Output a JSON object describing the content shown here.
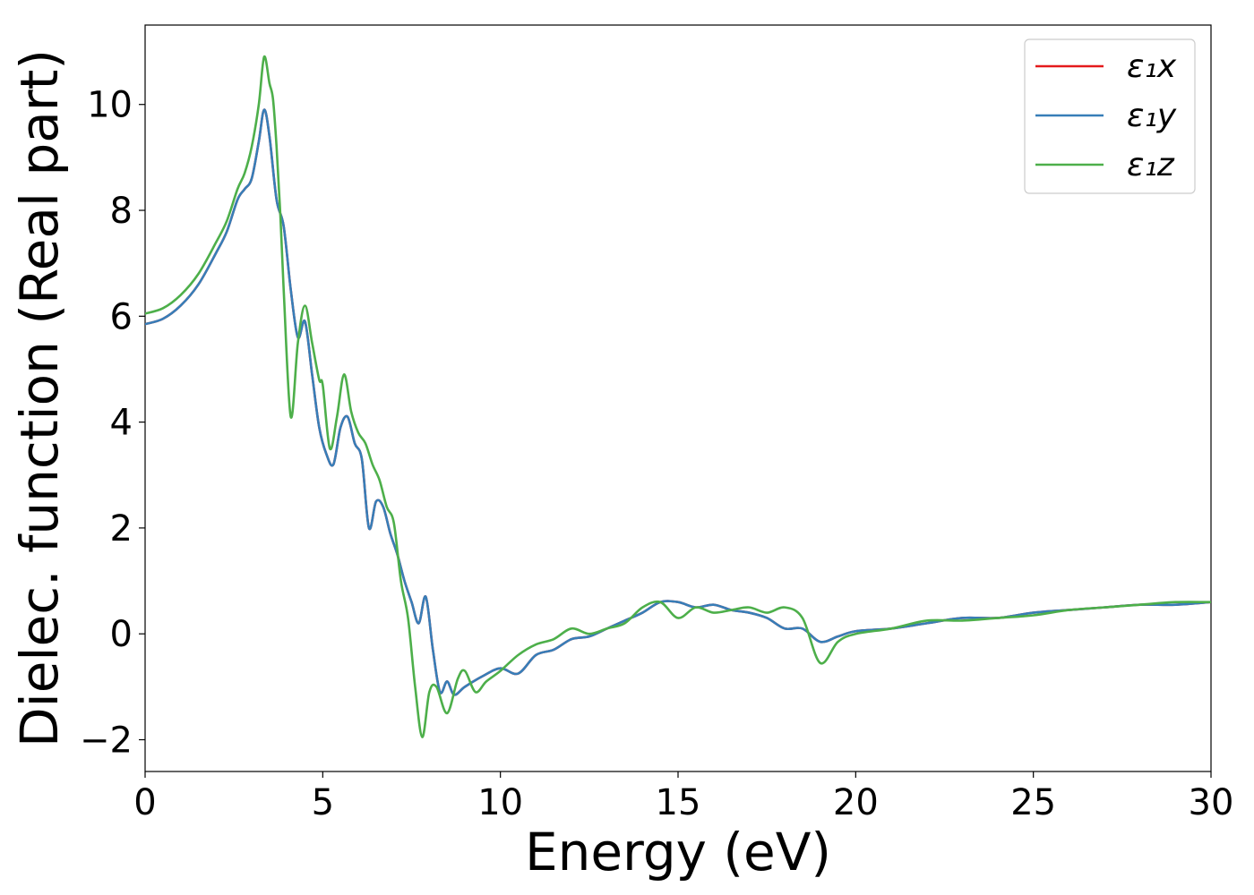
{
  "chart_data": {
    "type": "line",
    "title": "",
    "xlabel": "Energy (eV)",
    "ylabel": "Dielec. function (Real part)",
    "xlim": [
      0,
      30
    ],
    "ylim": [
      -2.6,
      11.5
    ],
    "xticks": [
      0,
      5,
      10,
      15,
      20,
      25,
      30
    ],
    "yticks": [
      -2,
      0,
      2,
      4,
      6,
      8,
      10
    ],
    "xtick_labels": [
      "0",
      "5",
      "10",
      "15",
      "20",
      "25",
      "30"
    ],
    "ytick_labels": [
      "−2",
      "0",
      "2",
      "4",
      "6",
      "8",
      "10"
    ],
    "grid": false,
    "legend_position": "top-right",
    "series": [
      {
        "name": "ε₁x",
        "color": "#e41a1c",
        "x": [
          0,
          0.5,
          1.0,
          1.5,
          2.0,
          2.3,
          2.6,
          2.8,
          3.0,
          3.2,
          3.35,
          3.5,
          3.7,
          3.9,
          4.1,
          4.3,
          4.5,
          4.7,
          4.9,
          5.1,
          5.3,
          5.5,
          5.7,
          5.9,
          6.1,
          6.3,
          6.5,
          6.7,
          6.9,
          7.1,
          7.3,
          7.5,
          7.7,
          7.9,
          8.1,
          8.3,
          8.5,
          8.7,
          9.0,
          9.5,
          10.0,
          10.5,
          11.0,
          11.5,
          12.0,
          12.5,
          13.0,
          13.5,
          14.0,
          14.5,
          15.0,
          15.5,
          16.0,
          16.5,
          17.0,
          17.5,
          18.0,
          18.5,
          19.0,
          19.5,
          20.0,
          21.0,
          22.0,
          23.0,
          24.0,
          25.0,
          26.0,
          27.0,
          28.0,
          29.0,
          30.0
        ],
        "values": [
          5.85,
          5.95,
          6.2,
          6.6,
          7.2,
          7.6,
          8.2,
          8.4,
          8.6,
          9.3,
          9.9,
          9.4,
          8.2,
          7.7,
          6.5,
          5.6,
          5.9,
          4.9,
          3.9,
          3.4,
          3.2,
          3.9,
          4.1,
          3.6,
          3.3,
          2.0,
          2.5,
          2.4,
          1.9,
          1.5,
          1.0,
          0.6,
          0.2,
          0.7,
          -0.3,
          -1.1,
          -0.9,
          -1.15,
          -1.0,
          -0.8,
          -0.65,
          -0.75,
          -0.4,
          -0.3,
          -0.1,
          -0.05,
          0.1,
          0.25,
          0.4,
          0.6,
          0.6,
          0.5,
          0.55,
          0.45,
          0.4,
          0.3,
          0.1,
          0.1,
          -0.15,
          -0.05,
          0.05,
          0.1,
          0.2,
          0.3,
          0.3,
          0.4,
          0.45,
          0.5,
          0.55,
          0.55,
          0.6
        ]
      },
      {
        "name": "ε₁y",
        "color": "#377eb8",
        "x": [
          0,
          0.5,
          1.0,
          1.5,
          2.0,
          2.3,
          2.6,
          2.8,
          3.0,
          3.2,
          3.35,
          3.5,
          3.7,
          3.9,
          4.1,
          4.3,
          4.5,
          4.7,
          4.9,
          5.1,
          5.3,
          5.5,
          5.7,
          5.9,
          6.1,
          6.3,
          6.5,
          6.7,
          6.9,
          7.1,
          7.3,
          7.5,
          7.7,
          7.9,
          8.1,
          8.3,
          8.5,
          8.7,
          9.0,
          9.5,
          10.0,
          10.5,
          11.0,
          11.5,
          12.0,
          12.5,
          13.0,
          13.5,
          14.0,
          14.5,
          15.0,
          15.5,
          16.0,
          16.5,
          17.0,
          17.5,
          18.0,
          18.5,
          19.0,
          19.5,
          20.0,
          21.0,
          22.0,
          23.0,
          24.0,
          25.0,
          26.0,
          27.0,
          28.0,
          29.0,
          30.0
        ],
        "values": [
          5.85,
          5.95,
          6.2,
          6.6,
          7.2,
          7.6,
          8.2,
          8.4,
          8.6,
          9.3,
          9.9,
          9.4,
          8.2,
          7.7,
          6.5,
          5.6,
          5.9,
          4.9,
          3.9,
          3.4,
          3.2,
          3.9,
          4.1,
          3.6,
          3.3,
          2.0,
          2.5,
          2.4,
          1.9,
          1.5,
          1.0,
          0.6,
          0.2,
          0.7,
          -0.3,
          -1.1,
          -0.9,
          -1.15,
          -1.0,
          -0.8,
          -0.65,
          -0.75,
          -0.4,
          -0.3,
          -0.1,
          -0.05,
          0.1,
          0.25,
          0.4,
          0.6,
          0.6,
          0.5,
          0.55,
          0.45,
          0.4,
          0.3,
          0.1,
          0.1,
          -0.15,
          -0.05,
          0.05,
          0.1,
          0.2,
          0.3,
          0.3,
          0.4,
          0.45,
          0.5,
          0.55,
          0.55,
          0.6
        ]
      },
      {
        "name": "ε₁z",
        "color": "#4daf4a",
        "x": [
          0,
          0.5,
          1.0,
          1.5,
          2.0,
          2.3,
          2.6,
          2.8,
          3.0,
          3.2,
          3.35,
          3.5,
          3.6,
          3.7,
          3.8,
          3.9,
          4.1,
          4.3,
          4.5,
          4.7,
          4.9,
          5.0,
          5.2,
          5.4,
          5.6,
          5.8,
          6.0,
          6.2,
          6.4,
          6.6,
          6.8,
          7.0,
          7.2,
          7.4,
          7.6,
          7.8,
          8.0,
          8.2,
          8.5,
          8.8,
          9.0,
          9.3,
          9.6,
          10.0,
          10.5,
          11.0,
          11.5,
          12.0,
          12.5,
          13.0,
          13.5,
          14.0,
          14.5,
          15.0,
          15.5,
          16.0,
          16.5,
          17.0,
          17.5,
          18.0,
          18.5,
          19.0,
          19.5,
          20.0,
          21.0,
          22.0,
          23.0,
          24.0,
          25.0,
          26.0,
          27.0,
          28.0,
          29.0,
          30.0
        ],
        "values": [
          6.05,
          6.15,
          6.4,
          6.8,
          7.4,
          7.8,
          8.4,
          8.7,
          9.2,
          10.0,
          10.9,
          10.4,
          10.1,
          9.2,
          8.0,
          6.5,
          4.1,
          5.5,
          6.2,
          5.5,
          4.8,
          4.7,
          3.5,
          4.1,
          4.9,
          4.2,
          3.8,
          3.6,
          3.2,
          2.9,
          2.4,
          2.1,
          1.0,
          0.3,
          -1.0,
          -1.95,
          -1.1,
          -1.0,
          -1.5,
          -0.85,
          -0.7,
          -1.1,
          -0.9,
          -0.7,
          -0.4,
          -0.2,
          -0.1,
          0.1,
          0.0,
          0.1,
          0.2,
          0.5,
          0.6,
          0.3,
          0.5,
          0.4,
          0.45,
          0.5,
          0.4,
          0.5,
          0.3,
          -0.55,
          -0.15,
          0.0,
          0.1,
          0.25,
          0.25,
          0.3,
          0.35,
          0.45,
          0.5,
          0.55,
          0.6,
          0.6
        ]
      }
    ]
  }
}
